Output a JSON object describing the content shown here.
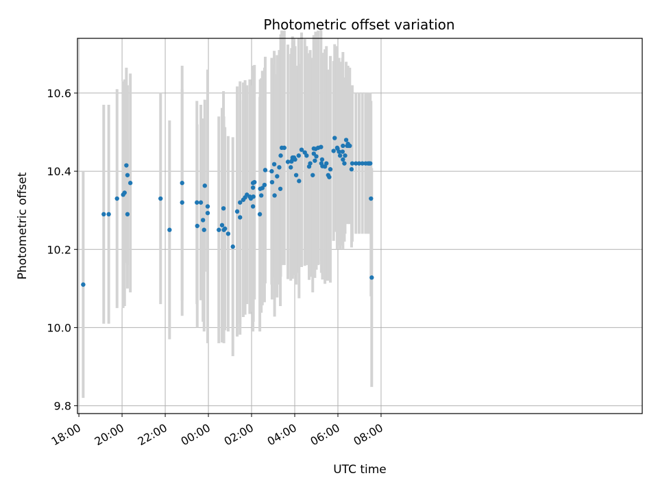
{
  "chart_data": {
    "type": "scatter",
    "title": "Photometric offset variation",
    "xlabel": "UTC time",
    "ylabel": "Photometric offset",
    "x_ticks": [
      "18:00",
      "20:00",
      "22:00",
      "00:00",
      "02:00",
      "04:00",
      "06:00",
      "08:00"
    ],
    "y_ticks": [
      "9.8",
      "10.0",
      "10.2",
      "10.4",
      "10.6"
    ],
    "xlim": [
      "17:56",
      "20:06 +1d"
    ],
    "ylim": [
      9.78,
      10.74
    ],
    "grid": true,
    "legend": "none",
    "colors": {
      "points": "#1f77b4",
      "errorbars": "#d3d3d3",
      "grid": "#b0b0b0"
    },
    "series": [
      {
        "x": [
          "18:12",
          "19:09",
          "19:23",
          "19:46",
          "20:03",
          "20:07",
          "20:12",
          "20:15",
          "20:15",
          "20:23",
          "21:47",
          "22:12",
          "22:47",
          "22:47",
          "23:28",
          "23:29",
          "23:39",
          "23:45",
          "23:48",
          "23:50",
          "23:58",
          "23:58",
          "00:29",
          "00:38",
          "00:42",
          "00:43",
          "00:46",
          "00:55",
          "01:08",
          "01:20",
          "01:28",
          "01:28",
          "01:37",
          "01:42",
          "01:47",
          "01:55",
          "01:58",
          "02:04",
          "02:04",
          "02:05",
          "02:04",
          "02:08",
          "02:23",
          "02:24",
          "02:27",
          "02:30",
          "02:36",
          "02:38",
          "02:56",
          "02:57",
          "03:03",
          "03:04",
          "03:11",
          "03:17",
          "03:20",
          "03:21",
          "03:24",
          "03:31",
          "03:41",
          "03:49",
          "03:51",
          "03:54",
          "03:54",
          "03:58",
          "04:01",
          "04:04",
          "04:11",
          "04:12",
          "04:19",
          "04:28",
          "04:33",
          "04:40",
          "04:43",
          "04:50",
          "04:53",
          "04:53",
          "04:56",
          "04:58",
          "05:00",
          "05:05",
          "05:13",
          "05:14",
          "05:16",
          "05:17",
          "05:24",
          "05:28",
          "05:33",
          "05:36",
          "05:39",
          "05:48",
          "05:51",
          "05:58",
          "05:59",
          "06:03",
          "06:06",
          "06:13",
          "06:14",
          "06:14",
          "06:18",
          "06:20",
          "06:23",
          "06:26",
          "06:28",
          "06:30",
          "06:33",
          "06:38",
          "06:40",
          "06:50",
          "06:59",
          "07:08",
          "07:17",
          "07:24",
          "07:27",
          "07:30",
          "07:32",
          "07:34"
        ],
        "y": [
          10.11,
          10.29,
          10.29,
          10.33,
          10.34,
          10.345,
          10.415,
          10.39,
          10.29,
          10.37,
          10.33,
          10.25,
          10.37,
          10.32,
          10.32,
          10.26,
          10.32,
          10.275,
          10.25,
          10.363,
          10.31,
          10.293,
          10.25,
          10.262,
          10.305,
          10.25,
          10.253,
          10.24,
          10.207,
          10.297,
          10.32,
          10.282,
          10.327,
          10.333,
          10.34,
          10.335,
          10.33,
          10.358,
          10.37,
          10.335,
          10.31,
          10.372,
          10.29,
          10.355,
          10.338,
          10.357,
          10.365,
          10.403,
          10.4,
          10.372,
          10.418,
          10.338,
          10.387,
          10.41,
          10.355,
          10.44,
          10.46,
          10.46,
          10.424,
          10.41,
          10.425,
          10.43,
          10.435,
          10.435,
          10.43,
          10.39,
          10.44,
          10.375,
          10.455,
          10.448,
          10.44,
          10.412,
          10.42,
          10.39,
          10.445,
          10.458,
          10.427,
          10.457,
          10.438,
          10.46,
          10.462,
          10.42,
          10.43,
          10.413,
          10.412,
          10.42,
          10.39,
          10.385,
          10.405,
          10.452,
          10.485,
          10.46,
          10.458,
          10.45,
          10.44,
          10.45,
          10.43,
          10.465,
          10.42,
          10.44,
          10.48,
          10.465,
          10.47,
          10.465,
          10.465,
          10.405,
          10.42,
          10.42,
          10.42,
          10.42,
          10.42,
          10.42,
          10.42,
          10.42,
          10.33,
          10.128
        ],
        "err": [
          0.29,
          0.28,
          0.28,
          0.28,
          0.29,
          0.29,
          0.25,
          0.23,
          0.19,
          0.28,
          0.27,
          0.28,
          0.3,
          0.29,
          0.26,
          0.26,
          0.25,
          0.26,
          0.26,
          0.22,
          0.35,
          0.29,
          0.29,
          0.3,
          0.3,
          0.29,
          0.26,
          0.25,
          0.28,
          0.32,
          0.31,
          0.3,
          0.3,
          0.3,
          0.28,
          0.3,
          0.29,
          0.3,
          0.3,
          0.32,
          0.32,
          0.3,
          0.3,
          0.28,
          0.3,
          0.3,
          0.3,
          0.29,
          0.29,
          0.3,
          0.29,
          0.31,
          0.31,
          0.3,
          0.3,
          0.31,
          0.3,
          0.3,
          0.3,
          0.29,
          0.29,
          0.3,
          0.31,
          0.3,
          0.29,
          0.28,
          0.3,
          0.3,
          0.3,
          0.29,
          0.28,
          0.29,
          0.29,
          0.3,
          0.3,
          0.29,
          0.3,
          0.3,
          0.29,
          0.3,
          0.3,
          0.28,
          0.26,
          0.29,
          0.3,
          0.3,
          0.27,
          0.25,
          0.29,
          0.23,
          0.24,
          0.26,
          0.23,
          0.24,
          0.24,
          0.24,
          0.23,
          0.24,
          0.2,
          0.2,
          0.2,
          0.2,
          0.2,
          0.2,
          0.2,
          0.2,
          0.2,
          0.18,
          0.18,
          0.18,
          0.18,
          0.18,
          0.18,
          0.18,
          0.25,
          0.28
        ]
      }
    ]
  }
}
